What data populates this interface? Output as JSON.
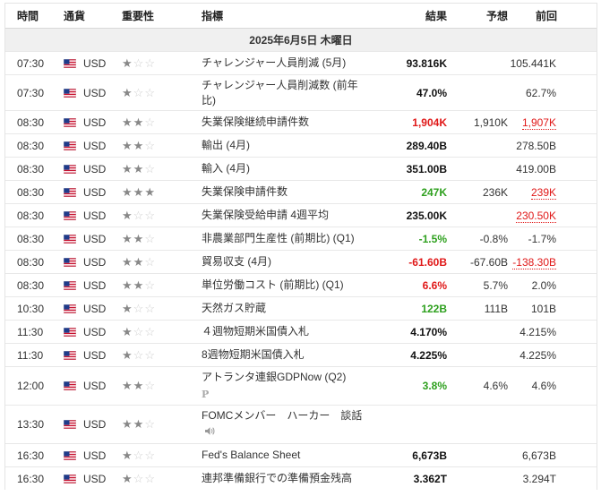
{
  "headers": {
    "time": "時間",
    "currency": "通貨",
    "importance": "重要性",
    "event": "指標",
    "actual": "結果",
    "forecast": "予想",
    "previous": "前回"
  },
  "date_label": "2025年6月5日 木曜日",
  "colors": {
    "green": "#2ea01e",
    "red": "#e01818",
    "star_on": "#888888",
    "star_off": "#cfcfcf"
  },
  "rows": [
    {
      "time": "07:30",
      "currency": "USD",
      "stars": 1,
      "event": "チャレンジャー人員削減 (5月)",
      "actual": "93.816K",
      "actual_color": "",
      "forecast": "",
      "previous": "105.441K",
      "prev_red": false,
      "h": 1
    },
    {
      "time": "07:30",
      "currency": "USD",
      "stars": 1,
      "event": "チャレンジャー人員削減数 (前年比)",
      "actual": "47.0%",
      "actual_color": "",
      "forecast": "",
      "previous": "62.7%",
      "prev_red": false,
      "h": 2
    },
    {
      "time": "08:30",
      "currency": "USD",
      "stars": 2,
      "event": "失業保険継続申請件数",
      "actual": "1,904K",
      "actual_color": "red",
      "forecast": "1,910K",
      "previous": "1,907K",
      "prev_red": true,
      "h": 1
    },
    {
      "time": "08:30",
      "currency": "USD",
      "stars": 2,
      "event": "輸出 (4月)",
      "actual": "289.40B",
      "actual_color": "",
      "forecast": "",
      "previous": "278.50B",
      "prev_red": false,
      "h": 1
    },
    {
      "time": "08:30",
      "currency": "USD",
      "stars": 2,
      "event": "輸入 (4月)",
      "actual": "351.00B",
      "actual_color": "",
      "forecast": "",
      "previous": "419.00B",
      "prev_red": false,
      "h": 1
    },
    {
      "time": "08:30",
      "currency": "USD",
      "stars": 3,
      "event": "失業保険申請件数",
      "actual": "247K",
      "actual_color": "green",
      "forecast": "236K",
      "previous": "239K",
      "prev_red": true,
      "h": 1
    },
    {
      "time": "08:30",
      "currency": "USD",
      "stars": 1,
      "event": "失業保険受給申請 4週平均",
      "actual": "235.00K",
      "actual_color": "",
      "forecast": "",
      "previous": "230.50K",
      "prev_red": true,
      "h": 1
    },
    {
      "time": "08:30",
      "currency": "USD",
      "stars": 2,
      "event": "非農業部門生産性 (前期比) (Q1)",
      "actual": "-1.5%",
      "actual_color": "green",
      "forecast": "-0.8%",
      "previous": "-1.7%",
      "prev_red": false,
      "h": 1
    },
    {
      "time": "08:30",
      "currency": "USD",
      "stars": 2,
      "event": "貿易収支 (4月)",
      "actual": "-61.60B",
      "actual_color": "red",
      "forecast": "-67.60B",
      "previous": "-138.30B",
      "prev_red": true,
      "h": 1
    },
    {
      "time": "08:30",
      "currency": "USD",
      "stars": 2,
      "event": "単位労働コスト (前期比) (Q1)",
      "actual": "6.6%",
      "actual_color": "red",
      "forecast": "5.7%",
      "previous": "2.0%",
      "prev_red": false,
      "h": 1
    },
    {
      "time": "10:30",
      "currency": "USD",
      "stars": 1,
      "event": "天然ガス貯蔵",
      "actual": "122B",
      "actual_color": "green",
      "forecast": "111B",
      "previous": "101B",
      "prev_red": false,
      "h": 1
    },
    {
      "time": "11:30",
      "currency": "USD",
      "stars": 1,
      "event": "４週物短期米国債入札",
      "actual": "4.170%",
      "actual_color": "",
      "forecast": "",
      "previous": "4.215%",
      "prev_red": false,
      "h": 1
    },
    {
      "time": "11:30",
      "currency": "USD",
      "stars": 1,
      "event": "8週物短期米国債入札",
      "actual": "4.225%",
      "actual_color": "",
      "forecast": "",
      "previous": "4.225%",
      "prev_red": false,
      "h": 1
    },
    {
      "time": "12:00",
      "currency": "USD",
      "stars": 2,
      "event": "アトランタ連銀GDPNow (Q2)",
      "actual": "3.8%",
      "actual_color": "green",
      "forecast": "4.6%",
      "previous": "4.6%",
      "prev_red": false,
      "h": 3,
      "badge": "P"
    },
    {
      "time": "13:30",
      "currency": "USD",
      "stars": 2,
      "event": "FOMCメンバー　ハーカー　談話",
      "actual": "",
      "actual_color": "",
      "forecast": "",
      "previous": "",
      "prev_red": false,
      "h": 3,
      "speaker": true
    },
    {
      "time": "16:30",
      "currency": "USD",
      "stars": 1,
      "event": "Fed's Balance Sheet",
      "actual": "6,673B",
      "actual_color": "",
      "forecast": "",
      "previous": "6,673B",
      "prev_red": false,
      "h": 1
    },
    {
      "time": "16:30",
      "currency": "USD",
      "stars": 1,
      "event": "連邦準備銀行での準備預金残高",
      "actual": "3.362T",
      "actual_color": "",
      "forecast": "",
      "previous": "3.294T",
      "prev_red": false,
      "h": 1
    }
  ]
}
